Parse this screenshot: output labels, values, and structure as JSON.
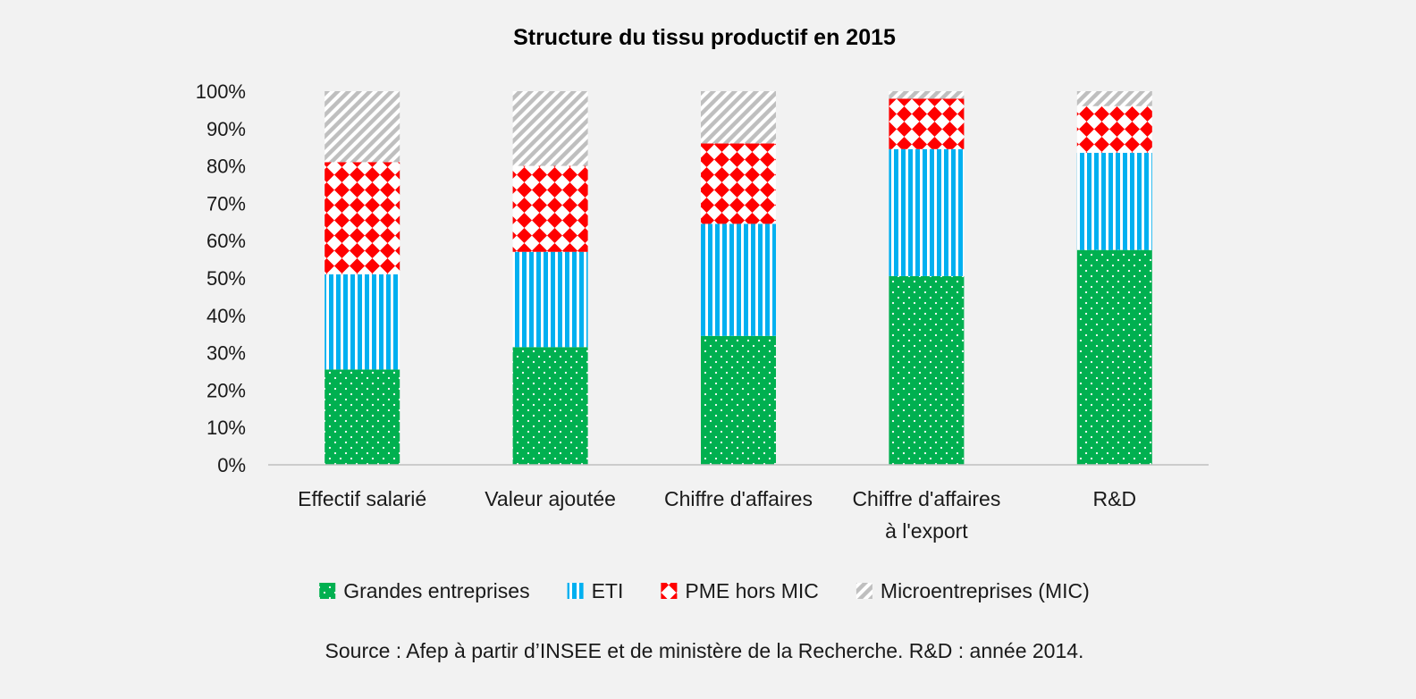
{
  "chart_data": {
    "type": "bar",
    "stacked": true,
    "title": "Structure du tissu productif en 2015",
    "categories": [
      [
        "Effectif salarié"
      ],
      [
        "Valeur ajoutée"
      ],
      [
        "Chiffre d'affaires"
      ],
      [
        "Chiffre d'affaires",
        "à l'export"
      ],
      [
        "R&D"
      ]
    ],
    "series": [
      {
        "name": "Grandes entreprises",
        "values": [
          25.5,
          31.5,
          34.5,
          50.5,
          57.5
        ],
        "color": "#00b050",
        "pattern": "dots"
      },
      {
        "name": "ETI",
        "values": [
          25.5,
          25.5,
          30.0,
          34.0,
          26.0
        ],
        "color": "#00b0f0",
        "pattern": "vertical-stripes"
      },
      {
        "name": "PME hors MIC",
        "values": [
          30.0,
          23.0,
          21.5,
          13.5,
          12.5
        ],
        "color": "#ff0000",
        "pattern": "diamonds"
      },
      {
        "name": "Microentreprises (MIC)",
        "values": [
          19.0,
          20.0,
          14.0,
          2.0,
          4.0
        ],
        "color": "#bfbfbf",
        "pattern": "diagonal-stripes"
      }
    ],
    "ylim": [
      0,
      100
    ],
    "yticks": [
      "0%",
      "10%",
      "20%",
      "30%",
      "40%",
      "50%",
      "60%",
      "70%",
      "80%",
      "90%",
      "100%"
    ],
    "legend_position": "bottom",
    "grid": false
  },
  "source_note": "Source : Afep à partir d’INSEE et de ministère de la Recherche. R&D : année 2014."
}
